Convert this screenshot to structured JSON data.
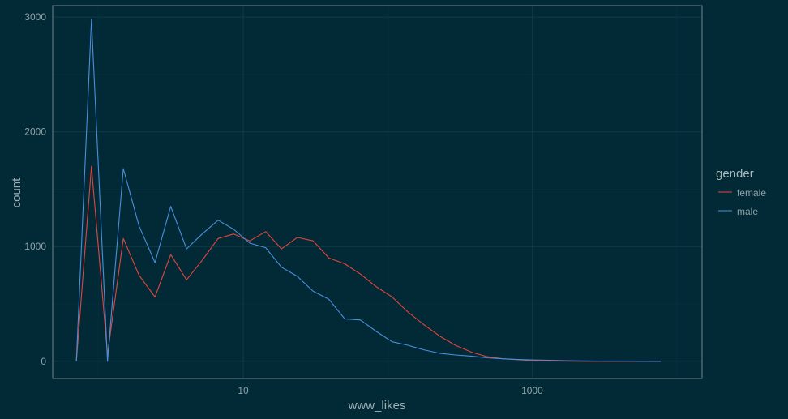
{
  "chart_data": {
    "type": "line",
    "title": "",
    "xlabel": "www_likes",
    "ylabel": "count",
    "x_scale": "log10",
    "xlim": [
      0.48,
      15000
    ],
    "ylim": [
      -150,
      3100
    ],
    "grid": true,
    "legend_position": "right",
    "x_ticks": [
      {
        "value": 10,
        "label": "10"
      },
      {
        "value": 1000,
        "label": "1000"
      }
    ],
    "y_ticks": [
      {
        "value": 0,
        "label": "0"
      },
      {
        "value": 1000,
        "label": "1000"
      },
      {
        "value": 2000,
        "label": "2000"
      },
      {
        "value": 3000,
        "label": "3000"
      }
    ],
    "legend_title": "gender",
    "series": [
      {
        "name": "female",
        "color": "#e4443e",
        "x": [
          0.7,
          0.89,
          1.15,
          1.48,
          1.9,
          2.45,
          3.15,
          4.05,
          5.2,
          6.7,
          8.6,
          11.1,
          14.3,
          18.4,
          23.7,
          30.5,
          39.2,
          50.4,
          64.8,
          83.4,
          107.3,
          138,
          177.6,
          228.5,
          294,
          378.2,
          486.6,
          626,
          805.4,
          1036,
          1333,
          1715,
          2207,
          2839,
          3653,
          4700,
          6047,
          7780
        ],
        "values": [
          0,
          1700,
          60,
          1070,
          750,
          560,
          930,
          710,
          880,
          1070,
          1110,
          1050,
          1130,
          980,
          1080,
          1050,
          900,
          850,
          760,
          650,
          560,
          430,
          320,
          220,
          140,
          80,
          40,
          22,
          13,
          6,
          3,
          1,
          0,
          0,
          0,
          0,
          0,
          0
        ]
      },
      {
        "name": "male",
        "color": "#4a8fdb",
        "x": [
          0.7,
          0.89,
          1.15,
          1.48,
          1.9,
          2.45,
          3.15,
          4.05,
          5.2,
          6.7,
          8.6,
          11.1,
          14.3,
          18.4,
          23.7,
          30.5,
          39.2,
          50.4,
          64.8,
          83.4,
          107.3,
          138,
          177.6,
          228.5,
          294,
          378.2,
          486.6,
          626,
          805.4,
          1036,
          1333,
          1715,
          2207,
          2839,
          3653,
          4700,
          6047,
          7780
        ],
        "values": [
          0,
          2980,
          0,
          1680,
          1180,
          860,
          1350,
          980,
          1110,
          1230,
          1150,
          1030,
          990,
          820,
          740,
          610,
          540,
          370,
          360,
          260,
          170,
          140,
          100,
          70,
          55,
          45,
          30,
          22,
          15,
          11,
          8,
          5,
          3,
          2,
          1,
          1,
          0,
          0
        ]
      }
    ]
  }
}
